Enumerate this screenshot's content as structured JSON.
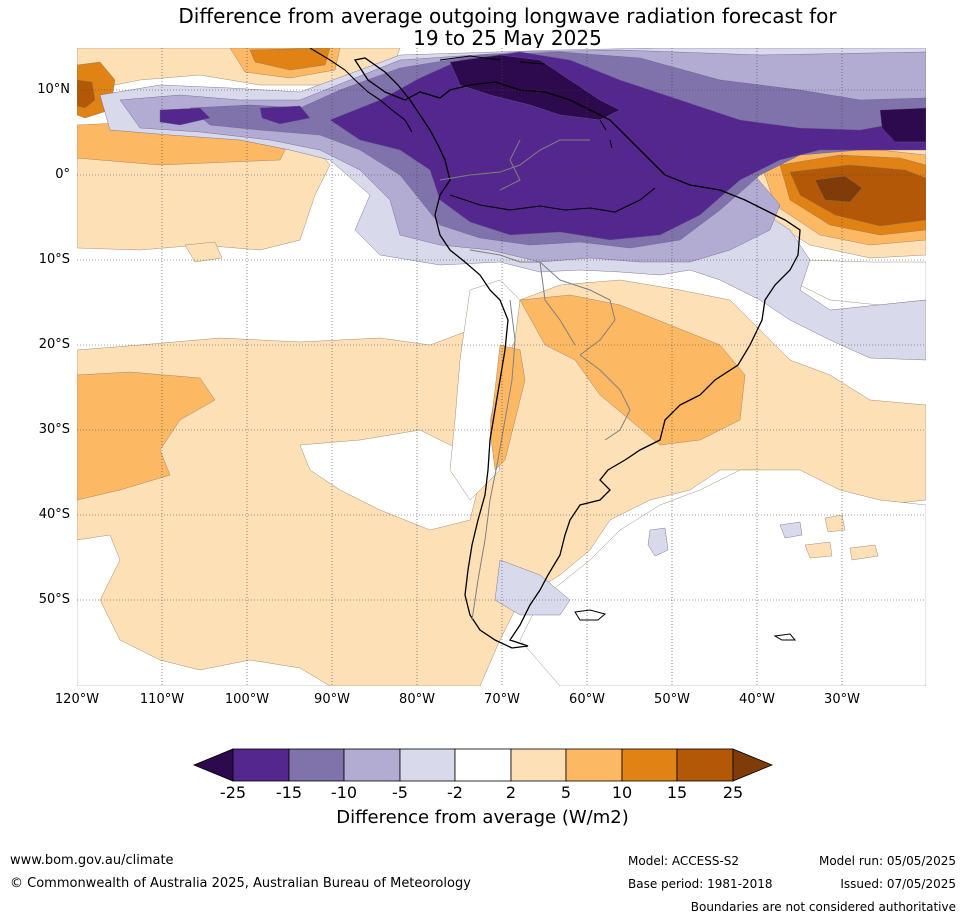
{
  "title": {
    "line1": "Difference from average outgoing longwave radiation forecast for",
    "line2": "19 to 25 May 2025"
  },
  "map": {
    "latitude_labels": [
      "10°N",
      "0°",
      "10°S",
      "20°S",
      "30°S",
      "40°S",
      "50°S"
    ],
    "longitude_labels": [
      "120°W",
      "110°W",
      "100°W",
      "90°W",
      "80°W",
      "70°W",
      "60°W",
      "50°W",
      "40°W",
      "30°W"
    ]
  },
  "colorbar": {
    "ticks": [
      "-25",
      "-15",
      "-10",
      "-5",
      "-2",
      "2",
      "5",
      "10",
      "15",
      "25"
    ],
    "colors": [
      "#2d0a4e",
      "#54278f",
      "#8073ac",
      "#b2abd2",
      "#d8daeb",
      "#ffffff",
      "#fee0b6",
      "#fdb863",
      "#e08214",
      "#b35806",
      "#7f3b08"
    ],
    "label": "Difference from average (W/m2)"
  },
  "footer": {
    "website": "www.bom.gov.au/climate",
    "copyright": "© Commonwealth of Australia 2025, Australian Bureau of Meteorology",
    "model": "Model: ACCESS-S2",
    "base_period": "Base period: 1981-2018",
    "model_run": "Model run: 05/05/2025",
    "issued": "Issued: 07/05/2025",
    "disclaimer": "Boundaries are not considered authoritative"
  }
}
